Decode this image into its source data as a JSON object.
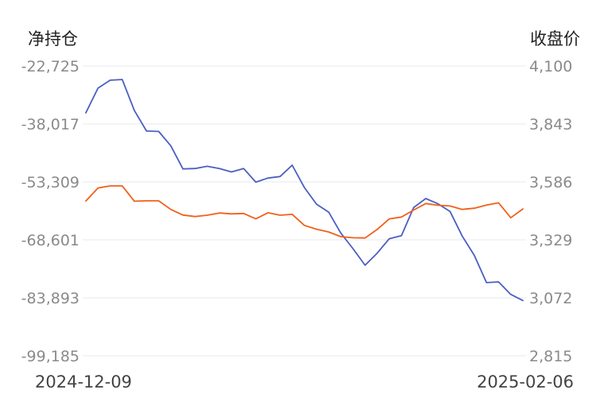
{
  "chart_data": {
    "type": "line",
    "left_axis_title": "净持仓",
    "right_axis_title": "收盘价",
    "left_ticks": [
      "-22,725",
      "-38,017",
      "-53,309",
      "-68,601",
      "-83,893",
      "-99,185"
    ],
    "right_ticks": [
      "4,100",
      "3,843",
      "3,586",
      "3,329",
      "3,072",
      "2,815"
    ],
    "left_ylim": [
      -99185,
      -22725
    ],
    "right_ylim": [
      2815,
      4100
    ],
    "x_start_label": "2024-12-09",
    "x_end_label": "2025-02-06",
    "grid": true,
    "series": [
      {
        "axis": "left",
        "color": "#4a5fc1",
        "values": [
          -35100,
          -28600,
          -26500,
          -26300,
          -34500,
          -39900,
          -40000,
          -43800,
          -49900,
          -49800,
          -49200,
          -49800,
          -50700,
          -49800,
          -53400,
          -52300,
          -51900,
          -48900,
          -54800,
          -59200,
          -61300,
          -66800,
          -70900,
          -75300,
          -72100,
          -68300,
          -67500,
          -60100,
          -57700,
          -59100,
          -61100,
          -67600,
          -72700,
          -79900,
          -79700,
          -83000,
          -84600
        ]
      },
      {
        "axis": "right",
        "color": "#f0601a",
        "values": [
          3501,
          3559,
          3568,
          3568,
          3500,
          3502,
          3502,
          3464,
          3439,
          3432,
          3438,
          3448,
          3444,
          3446,
          3422,
          3449,
          3438,
          3442,
          3393,
          3376,
          3364,
          3343,
          3338,
          3337,
          3375,
          3422,
          3430,
          3461,
          3490,
          3482,
          3479,
          3464,
          3469,
          3483,
          3493,
          3427,
          3466
        ]
      }
    ]
  }
}
